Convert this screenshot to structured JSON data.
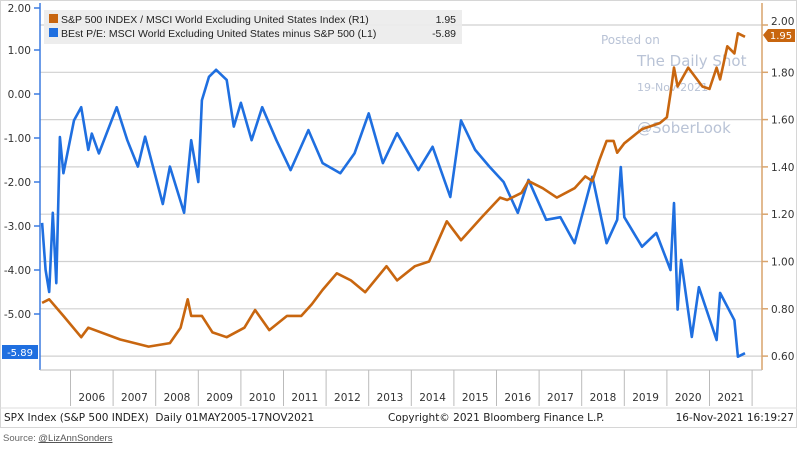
{
  "chart_data": {
    "type": "line",
    "x_axis": {
      "tick_labels": [
        "2006",
        "2007",
        "2008",
        "2009",
        "2010",
        "2011",
        "2012",
        "2013",
        "2014",
        "2015",
        "2016",
        "2017",
        "2018",
        "2019",
        "2020",
        "2021"
      ],
      "range": [
        "2005-05",
        "2021-11"
      ]
    },
    "y_left": {
      "ticks": [
        1.0,
        0.0,
        -1.0,
        -2.0,
        -3.0,
        -4.0,
        -5.0
      ],
      "tick_labels": [
        "1.00",
        "0.00",
        "-1.00",
        "-2.00",
        "-3.00",
        "-4.00",
        "-5.00"
      ],
      "range": [
        -6.2,
        2.0
      ],
      "top_label": "2.00"
    },
    "y_right": {
      "ticks": [
        2.0,
        1.8,
        1.6,
        1.4,
        1.2,
        1.0,
        0.8,
        0.6
      ],
      "tick_labels": [
        "2.00",
        "1.80",
        "1.60",
        "1.40",
        "1.20",
        "1.00",
        "0.80",
        "0.60"
      ],
      "range": [
        0.55,
        2.08
      ]
    },
    "grid": true,
    "legend_position": "top-left",
    "series": [
      {
        "name": "S&P 500 INDEX / MSCI World Excluding United States Index (R1)",
        "last_value": "1.95",
        "axis": "right",
        "color": "#c8660f",
        "points": [
          [
            "2005-05",
            0.825
          ],
          [
            "2005-07",
            0.84
          ],
          [
            "2005-11",
            0.77
          ],
          [
            "2006-04",
            0.68
          ],
          [
            "2006-06",
            0.72
          ],
          [
            "2007-03",
            0.67
          ],
          [
            "2007-11",
            0.64
          ],
          [
            "2008-05",
            0.655
          ],
          [
            "2008-08",
            0.72
          ],
          [
            "2008-10",
            0.84
          ],
          [
            "2008-11",
            0.77
          ],
          [
            "2009-02",
            0.77
          ],
          [
            "2009-05",
            0.7
          ],
          [
            "2009-09",
            0.68
          ],
          [
            "2010-02",
            0.72
          ],
          [
            "2010-05",
            0.795
          ],
          [
            "2010-09",
            0.71
          ],
          [
            "2011-02",
            0.77
          ],
          [
            "2011-06",
            0.77
          ],
          [
            "2011-09",
            0.82
          ],
          [
            "2011-12",
            0.88
          ],
          [
            "2012-04",
            0.95
          ],
          [
            "2012-08",
            0.92
          ],
          [
            "2012-12",
            0.87
          ],
          [
            "2013-06",
            0.98
          ],
          [
            "2013-09",
            0.92
          ],
          [
            "2014-02",
            0.98
          ],
          [
            "2014-06",
            1.0
          ],
          [
            "2014-11",
            1.17
          ],
          [
            "2015-03",
            1.09
          ],
          [
            "2015-09",
            1.19
          ],
          [
            "2016-02",
            1.27
          ],
          [
            "2016-04",
            1.26
          ],
          [
            "2016-08",
            1.29
          ],
          [
            "2016-10",
            1.34
          ],
          [
            "2017-02",
            1.31
          ],
          [
            "2017-06",
            1.27
          ],
          [
            "2017-11",
            1.31
          ],
          [
            "2018-02",
            1.36
          ],
          [
            "2018-04",
            1.34
          ],
          [
            "2018-06",
            1.43
          ],
          [
            "2018-08",
            1.51
          ],
          [
            "2018-10",
            1.51
          ],
          [
            "2018-11",
            1.46
          ],
          [
            "2019-01",
            1.5
          ],
          [
            "2019-06",
            1.56
          ],
          [
            "2019-11",
            1.585
          ],
          [
            "2020-01",
            1.61
          ],
          [
            "2020-02",
            1.71
          ],
          [
            "2020-03",
            1.82
          ],
          [
            "2020-04",
            1.74
          ],
          [
            "2020-07",
            1.82
          ],
          [
            "2020-11",
            1.74
          ],
          [
            "2021-01",
            1.73
          ],
          [
            "2021-03",
            1.82
          ],
          [
            "2021-04",
            1.77
          ],
          [
            "2021-06",
            1.91
          ],
          [
            "2021-08",
            1.88
          ],
          [
            "2021-09",
            1.965
          ],
          [
            "2021-11",
            1.95
          ]
        ]
      },
      {
        "name": "BEst P/E: MSCI World Excluding United States minus S&P 500 (L1)",
        "last_value": "-5.89",
        "axis": "left",
        "color": "#1f6fe0",
        "points": [
          [
            "2005-05",
            -2.93
          ],
          [
            "2005-06",
            -4.0
          ],
          [
            "2005-07",
            -4.5
          ],
          [
            "2005-08",
            -2.7
          ],
          [
            "2005-09",
            -4.3
          ],
          [
            "2005-10",
            -0.98
          ],
          [
            "2005-11",
            -1.8
          ],
          [
            "2006-02",
            -0.6
          ],
          [
            "2006-04",
            -0.3
          ],
          [
            "2006-06",
            -1.27
          ],
          [
            "2006-07",
            -0.9
          ],
          [
            "2006-09",
            -1.35
          ],
          [
            "2007-02",
            -0.3
          ],
          [
            "2007-05",
            -1.05
          ],
          [
            "2007-08",
            -1.65
          ],
          [
            "2007-10",
            -0.97
          ],
          [
            "2008-03",
            -2.5
          ],
          [
            "2008-05",
            -1.65
          ],
          [
            "2008-09",
            -2.7
          ],
          [
            "2008-11",
            -1.05
          ],
          [
            "2009-01",
            -2.0
          ],
          [
            "2009-02",
            -0.14
          ],
          [
            "2009-04",
            0.39
          ],
          [
            "2009-06",
            0.55
          ],
          [
            "2009-09",
            0.32
          ],
          [
            "2009-11",
            -0.74
          ],
          [
            "2010-01",
            -0.2
          ],
          [
            "2010-04",
            -1.05
          ],
          [
            "2010-07",
            -0.3
          ],
          [
            "2010-11",
            -1.05
          ],
          [
            "2011-03",
            -1.73
          ],
          [
            "2011-08",
            -0.82
          ],
          [
            "2011-12",
            -1.57
          ],
          [
            "2012-05",
            -1.8
          ],
          [
            "2012-09",
            -1.35
          ],
          [
            "2013-01",
            -0.44
          ],
          [
            "2013-05",
            -1.57
          ],
          [
            "2013-09",
            -0.89
          ],
          [
            "2014-03",
            -1.73
          ],
          [
            "2014-07",
            -1.2
          ],
          [
            "2014-12",
            -2.34
          ],
          [
            "2015-03",
            -0.6
          ],
          [
            "2015-07",
            -1.27
          ],
          [
            "2015-11",
            -1.65
          ],
          [
            "2016-03",
            -2.0
          ],
          [
            "2016-07",
            -2.7
          ],
          [
            "2016-10",
            -1.95
          ],
          [
            "2017-03",
            -2.86
          ],
          [
            "2017-07",
            -2.8
          ],
          [
            "2017-11",
            -3.39
          ],
          [
            "2018-04",
            -1.88
          ],
          [
            "2018-08",
            -3.39
          ],
          [
            "2018-11",
            -2.86
          ],
          [
            "2018-12",
            -1.66
          ],
          [
            "2019-01",
            -2.8
          ],
          [
            "2019-06",
            -3.47
          ],
          [
            "2019-10",
            -3.16
          ],
          [
            "2020-02",
            -4.0
          ],
          [
            "2020-03",
            -2.48
          ],
          [
            "2020-04",
            -4.9
          ],
          [
            "2020-05",
            -3.77
          ],
          [
            "2020-08",
            -5.52
          ],
          [
            "2020-10",
            -4.39
          ],
          [
            "2021-03",
            -5.59
          ],
          [
            "2021-04",
            -4.52
          ],
          [
            "2021-08",
            -5.14
          ],
          [
            "2021-09",
            -5.97
          ],
          [
            "2021-11",
            -5.89
          ]
        ]
      }
    ]
  },
  "watermark": {
    "line1": "Posted on",
    "line2": "The Daily Shot",
    "line3": "19-Nov-2021",
    "line4": "@SoberLook"
  },
  "footer": {
    "left": "SPX Index (S&P 500 INDEX)  Daily 01MAY2005-17NOV2021",
    "center": "Copyright© 2021 Bloomberg Finance L.P.",
    "right": "16-Nov-2021 16:19:27"
  },
  "source": {
    "label": "Source:",
    "link": "@LizAnnSonders"
  }
}
